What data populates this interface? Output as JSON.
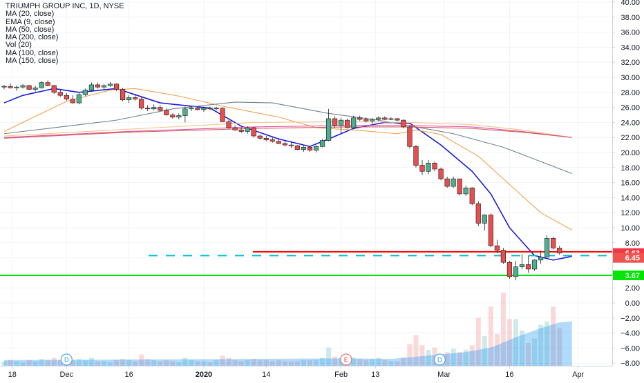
{
  "legend": {
    "title": "TRIUMPH GROUP INC, 1D, NYSE",
    "lines": [
      "MA (20, close)",
      "EMA (9, close)",
      "MA (50, close)",
      "MA (200, close)",
      "Vol (20)",
      "MA (100, close)",
      "MA (150, close)"
    ]
  },
  "chart_data": {
    "type": "candlestick",
    "title": "TRIUMPH GROUP INC, 1D, NYSE",
    "y_axis": {
      "ticks": [
        "40.00",
        "38.00",
        "36.00",
        "34.00",
        "32.00",
        "30.00",
        "28.00",
        "26.00",
        "24.00",
        "22.00",
        "20.00",
        "18.00",
        "16.00",
        "14.00",
        "12.00",
        "10.00",
        "8.00",
        "6.00",
        "4.00",
        "2.00",
        "0.00",
        "−2.00",
        "−4.00",
        "−6.00",
        "−8.00"
      ],
      "range": [
        -9,
        40
      ]
    },
    "x_axis": {
      "labels": [
        "18",
        "Dec",
        "16",
        "2020",
        "14",
        "Feb",
        "13",
        "Mar",
        "16",
        "Apr"
      ]
    },
    "price_labels": [
      {
        "text": "6.63",
        "value": 6.63,
        "color": "#f23645"
      },
      {
        "text": "6.45",
        "value": 6.45,
        "color": "#ef5350"
      },
      {
        "text": "3.67",
        "value": 3.67,
        "color": "#00e600"
      }
    ],
    "horizontal_lines": [
      {
        "value": 6.8,
        "color": "#ff0000",
        "style": "solid"
      },
      {
        "value": 6.3,
        "color": "#00bcd4",
        "style": "dashed"
      },
      {
        "value": 3.67,
        "color": "#00e600",
        "style": "solid"
      }
    ],
    "event_markers": [
      "D",
      "E",
      "D"
    ],
    "candles": [
      {
        "o": 28.7,
        "h": 29.0,
        "l": 28.4,
        "c": 28.8
      },
      {
        "o": 28.8,
        "h": 29.2,
        "l": 28.5,
        "c": 28.6
      },
      {
        "o": 28.6,
        "h": 28.9,
        "l": 28.2,
        "c": 28.7
      },
      {
        "o": 28.7,
        "h": 29.1,
        "l": 28.5,
        "c": 28.9
      },
      {
        "o": 28.9,
        "h": 29.0,
        "l": 28.3,
        "c": 28.4
      },
      {
        "o": 28.4,
        "h": 28.9,
        "l": 28.1,
        "c": 28.6
      },
      {
        "o": 28.6,
        "h": 29.5,
        "l": 28.5,
        "c": 29.3
      },
      {
        "o": 29.3,
        "h": 29.6,
        "l": 28.8,
        "c": 28.9
      },
      {
        "o": 28.9,
        "h": 29.0,
        "l": 27.8,
        "c": 28.0
      },
      {
        "o": 28.0,
        "h": 28.4,
        "l": 27.4,
        "c": 27.6
      },
      {
        "o": 27.6,
        "h": 27.9,
        "l": 26.9,
        "c": 27.1
      },
      {
        "o": 27.1,
        "h": 27.6,
        "l": 26.5,
        "c": 26.6
      },
      {
        "o": 26.6,
        "h": 27.9,
        "l": 26.4,
        "c": 27.7
      },
      {
        "o": 27.7,
        "h": 28.5,
        "l": 27.5,
        "c": 28.3
      },
      {
        "o": 28.3,
        "h": 29.3,
        "l": 28.1,
        "c": 29.0
      },
      {
        "o": 29.0,
        "h": 29.3,
        "l": 28.5,
        "c": 28.7
      },
      {
        "o": 28.7,
        "h": 29.1,
        "l": 28.4,
        "c": 28.9
      },
      {
        "o": 28.9,
        "h": 29.4,
        "l": 28.7,
        "c": 29.1
      },
      {
        "o": 29.1,
        "h": 29.2,
        "l": 28.2,
        "c": 28.4
      },
      {
        "o": 28.4,
        "h": 28.6,
        "l": 26.8,
        "c": 27.0
      },
      {
        "o": 27.0,
        "h": 27.6,
        "l": 26.6,
        "c": 27.3
      },
      {
        "o": 27.3,
        "h": 27.8,
        "l": 26.9,
        "c": 27.1
      },
      {
        "o": 27.1,
        "h": 27.4,
        "l": 25.7,
        "c": 25.9
      },
      {
        "o": 25.9,
        "h": 26.3,
        "l": 25.5,
        "c": 25.8
      },
      {
        "o": 25.8,
        "h": 26.4,
        "l": 25.6,
        "c": 26.0
      },
      {
        "o": 26.0,
        "h": 26.3,
        "l": 25.5,
        "c": 25.6
      },
      {
        "o": 25.6,
        "h": 25.9,
        "l": 24.9,
        "c": 25.0
      },
      {
        "o": 25.0,
        "h": 25.2,
        "l": 24.5,
        "c": 24.7
      },
      {
        "o": 24.7,
        "h": 25.2,
        "l": 24.4,
        "c": 24.9
      },
      {
        "o": 24.9,
        "h": 26.1,
        "l": 24.0,
        "c": 25.8
      },
      {
        "o": 25.8,
        "h": 26.2,
        "l": 25.5,
        "c": 25.9
      },
      {
        "o": 25.9,
        "h": 26.1,
        "l": 25.6,
        "c": 25.7
      },
      {
        "o": 25.7,
        "h": 26.0,
        "l": 25.4,
        "c": 25.9
      },
      {
        "o": 25.9,
        "h": 26.1,
        "l": 25.6,
        "c": 25.8
      },
      {
        "o": 25.8,
        "h": 26.1,
        "l": 25.6,
        "c": 25.9
      },
      {
        "o": 25.9,
        "h": 26.0,
        "l": 24.0,
        "c": 24.1
      },
      {
        "o": 24.1,
        "h": 24.3,
        "l": 23.1,
        "c": 23.3
      },
      {
        "o": 23.3,
        "h": 23.6,
        "l": 22.9,
        "c": 23.0
      },
      {
        "o": 23.0,
        "h": 23.3,
        "l": 22.6,
        "c": 22.8
      },
      {
        "o": 22.8,
        "h": 23.5,
        "l": 22.5,
        "c": 23.3
      },
      {
        "o": 23.3,
        "h": 23.4,
        "l": 22.0,
        "c": 22.2
      },
      {
        "o": 22.2,
        "h": 22.4,
        "l": 21.7,
        "c": 21.9
      },
      {
        "o": 21.9,
        "h": 22.2,
        "l": 21.5,
        "c": 21.7
      },
      {
        "o": 21.7,
        "h": 22.0,
        "l": 21.3,
        "c": 21.5
      },
      {
        "o": 21.5,
        "h": 21.9,
        "l": 21.1,
        "c": 21.2
      },
      {
        "o": 21.2,
        "h": 21.6,
        "l": 20.8,
        "c": 21.0
      },
      {
        "o": 21.0,
        "h": 21.4,
        "l": 20.6,
        "c": 20.9
      },
      {
        "o": 20.9,
        "h": 21.0,
        "l": 20.3,
        "c": 20.4
      },
      {
        "o": 20.4,
        "h": 20.9,
        "l": 20.1,
        "c": 20.7
      },
      {
        "o": 20.7,
        "h": 20.9,
        "l": 20.1,
        "c": 20.3
      },
      {
        "o": 20.3,
        "h": 21.0,
        "l": 20.0,
        "c": 20.8
      },
      {
        "o": 20.8,
        "h": 21.8,
        "l": 20.7,
        "c": 21.6
      },
      {
        "o": 21.6,
        "h": 25.8,
        "l": 21.5,
        "c": 24.5
      },
      {
        "o": 24.5,
        "h": 24.8,
        "l": 23.3,
        "c": 23.6
      },
      {
        "o": 23.6,
        "h": 24.6,
        "l": 22.5,
        "c": 24.3
      },
      {
        "o": 24.3,
        "h": 24.5,
        "l": 23.2,
        "c": 23.3
      },
      {
        "o": 23.3,
        "h": 24.9,
        "l": 23.1,
        "c": 24.6
      },
      {
        "o": 24.6,
        "h": 24.9,
        "l": 24.2,
        "c": 24.4
      },
      {
        "o": 24.4,
        "h": 24.7,
        "l": 24.0,
        "c": 24.2
      },
      {
        "o": 24.2,
        "h": 24.6,
        "l": 23.8,
        "c": 24.4
      },
      {
        "o": 24.4,
        "h": 24.8,
        "l": 24.2,
        "c": 24.6
      },
      {
        "o": 24.6,
        "h": 24.8,
        "l": 24.3,
        "c": 24.4
      },
      {
        "o": 24.4,
        "h": 24.7,
        "l": 24.3,
        "c": 24.5
      },
      {
        "o": 24.5,
        "h": 24.6,
        "l": 24.2,
        "c": 24.3
      },
      {
        "o": 24.3,
        "h": 24.4,
        "l": 23.2,
        "c": 23.4
      },
      {
        "o": 23.4,
        "h": 23.6,
        "l": 20.5,
        "c": 20.8
      },
      {
        "o": 20.8,
        "h": 21.0,
        "l": 18.0,
        "c": 18.3
      },
      {
        "o": 18.3,
        "h": 19.0,
        "l": 17.0,
        "c": 17.5
      },
      {
        "o": 17.5,
        "h": 19.0,
        "l": 17.1,
        "c": 18.6
      },
      {
        "o": 18.6,
        "h": 18.8,
        "l": 17.5,
        "c": 17.8
      },
      {
        "o": 17.8,
        "h": 18.0,
        "l": 16.3,
        "c": 16.5
      },
      {
        "o": 16.5,
        "h": 16.8,
        "l": 15.3,
        "c": 15.5
      },
      {
        "o": 15.5,
        "h": 16.8,
        "l": 15.3,
        "c": 16.5
      },
      {
        "o": 16.5,
        "h": 16.5,
        "l": 14.3,
        "c": 14.5
      },
      {
        "o": 14.5,
        "h": 15.6,
        "l": 14.2,
        "c": 15.3
      },
      {
        "o": 15.3,
        "h": 15.4,
        "l": 13.0,
        "c": 13.2
      },
      {
        "o": 13.2,
        "h": 13.5,
        "l": 10.2,
        "c": 10.6
      },
      {
        "o": 10.6,
        "h": 11.8,
        "l": 9.6,
        "c": 11.7
      },
      {
        "o": 11.7,
        "h": 11.9,
        "l": 7.4,
        "c": 7.6
      },
      {
        "o": 7.6,
        "h": 8.4,
        "l": 6.6,
        "c": 7.0
      },
      {
        "o": 7.0,
        "h": 7.3,
        "l": 5.2,
        "c": 5.4
      },
      {
        "o": 5.4,
        "h": 5.6,
        "l": 3.2,
        "c": 3.5
      },
      {
        "o": 3.5,
        "h": 5.6,
        "l": 3.0,
        "c": 4.8
      },
      {
        "o": 4.8,
        "h": 6.5,
        "l": 4.5,
        "c": 5.1
      },
      {
        "o": 5.1,
        "h": 6.3,
        "l": 4.0,
        "c": 4.5
      },
      {
        "o": 4.5,
        "h": 5.8,
        "l": 4.3,
        "c": 5.7
      },
      {
        "o": 5.7,
        "h": 7.0,
        "l": 5.2,
        "c": 6.1
      },
      {
        "o": 6.1,
        "h": 9.0,
        "l": 6.0,
        "c": 8.6
      },
      {
        "o": 8.6,
        "h": 8.8,
        "l": 7.1,
        "c": 7.3
      },
      {
        "o": 7.3,
        "h": 7.6,
        "l": 6.4,
        "c": 6.63
      }
    ],
    "volume": [
      0.4,
      0.5,
      0.4,
      0.3,
      0.5,
      0.4,
      0.6,
      0.5,
      0.7,
      0.5,
      0.4,
      0.5,
      0.6,
      0.5,
      0.7,
      0.4,
      0.4,
      0.3,
      0.5,
      0.6,
      0.5,
      0.4,
      1.0,
      0.6,
      0.5,
      0.4,
      0.5,
      0.4,
      0.3,
      0.7,
      0.5,
      0.4,
      0.4,
      0.3,
      0.5,
      0.9,
      0.7,
      0.5,
      0.4,
      0.5,
      0.6,
      0.5,
      0.5,
      0.4,
      0.5,
      0.4,
      0.4,
      0.4,
      0.5,
      0.5,
      0.5,
      0.7,
      1.6,
      0.8,
      0.7,
      0.6,
      0.7,
      0.6,
      0.5,
      0.6,
      0.7,
      0.5,
      0.4,
      0.4,
      0.7,
      1.9,
      2.7,
      1.8,
      1.4,
      1.6,
      1.0,
      1.2,
      1.5,
      1.2,
      1.4,
      1.8,
      4.2,
      2.6,
      5.2,
      2.8,
      6.4,
      4.1,
      4.1,
      3.1,
      2.0,
      2.4,
      3.6,
      3.9,
      5.2,
      3.3
    ],
    "volume_bar_colors": [
      "#26a69a",
      "#ef5350"
    ],
    "ma_lines": [
      {
        "name": "EMA (9, close)",
        "color": "#1a1adb",
        "points": [
          [
            0,
            26.6
          ],
          [
            3,
            27.6
          ],
          [
            8,
            28.5
          ],
          [
            12,
            28.0
          ],
          [
            18,
            28.5
          ],
          [
            25,
            26.6
          ],
          [
            33,
            25.9
          ],
          [
            38,
            23.5
          ],
          [
            44,
            21.8
          ],
          [
            49,
            20.8
          ],
          [
            52,
            21.8
          ],
          [
            56,
            23.2
          ],
          [
            61,
            24.0
          ],
          [
            65,
            23.9
          ],
          [
            70,
            21.0
          ],
          [
            75,
            17.5
          ],
          [
            78,
            14.5
          ],
          [
            81,
            10.0
          ],
          [
            85,
            6.3
          ],
          [
            88,
            5.7
          ],
          [
            91,
            6.2
          ]
        ]
      },
      {
        "name": "MA (20, close)",
        "color": "#f5a04d",
        "points": [
          [
            0,
            22.8
          ],
          [
            5,
            24.8
          ],
          [
            10,
            26.8
          ],
          [
            17,
            28.3
          ],
          [
            21,
            28.5
          ],
          [
            28,
            27.5
          ],
          [
            36,
            26.0
          ],
          [
            44,
            24.7
          ],
          [
            50,
            23.3
          ],
          [
            56,
            23.0
          ],
          [
            63,
            22.5
          ],
          [
            66,
            23.0
          ],
          [
            70,
            22.4
          ],
          [
            76,
            19.5
          ],
          [
            82,
            15.0
          ],
          [
            86,
            12.0
          ],
          [
            91,
            9.7
          ]
        ]
      },
      {
        "name": "MA (50, close)",
        "color": "#708090",
        "points": [
          [
            0,
            22.5
          ],
          [
            8,
            23.3
          ],
          [
            18,
            24.3
          ],
          [
            27,
            25.8
          ],
          [
            37,
            26.7
          ],
          [
            43,
            26.6
          ],
          [
            52,
            25.2
          ],
          [
            60,
            24.3
          ],
          [
            66,
            23.4
          ],
          [
            72,
            22.5
          ],
          [
            80,
            20.7
          ],
          [
            86,
            18.8
          ],
          [
            91,
            17.2
          ]
        ]
      },
      {
        "name": "MA (100, close)",
        "color": "#f7c48a",
        "points": [
          [
            0,
            22.2
          ],
          [
            20,
            23.1
          ],
          [
            40,
            24.0
          ],
          [
            55,
            24.1
          ],
          [
            65,
            24.0
          ],
          [
            75,
            23.7
          ],
          [
            83,
            23.0
          ],
          [
            91,
            22.0
          ]
        ]
      },
      {
        "name": "MA (150, close)",
        "color": "#e34fa0",
        "points": [
          [
            0,
            22.0
          ],
          [
            20,
            22.8
          ],
          [
            40,
            23.4
          ],
          [
            55,
            23.6
          ],
          [
            65,
            23.6
          ],
          [
            75,
            23.4
          ],
          [
            83,
            22.8
          ],
          [
            91,
            22.0
          ]
        ]
      },
      {
        "name": "MA (200, close)",
        "color": "#d06060",
        "points": [
          [
            0,
            21.9
          ],
          [
            20,
            22.7
          ],
          [
            40,
            23.2
          ],
          [
            55,
            23.4
          ],
          [
            65,
            23.4
          ],
          [
            75,
            23.2
          ],
          [
            83,
            22.7
          ],
          [
            91,
            22.0
          ]
        ]
      },
      {
        "name": "Vol (20)",
        "color": "#2196f3",
        "area": true,
        "points": [
          [
            0,
            0.5
          ],
          [
            20,
            0.55
          ],
          [
            40,
            0.6
          ],
          [
            55,
            0.65
          ],
          [
            62,
            0.6
          ],
          [
            66,
            0.8
          ],
          [
            70,
            1.0
          ],
          [
            74,
            1.2
          ],
          [
            78,
            1.6
          ],
          [
            82,
            2.5
          ],
          [
            86,
            3.3
          ],
          [
            89,
            3.8
          ],
          [
            91,
            3.9
          ]
        ]
      }
    ]
  }
}
